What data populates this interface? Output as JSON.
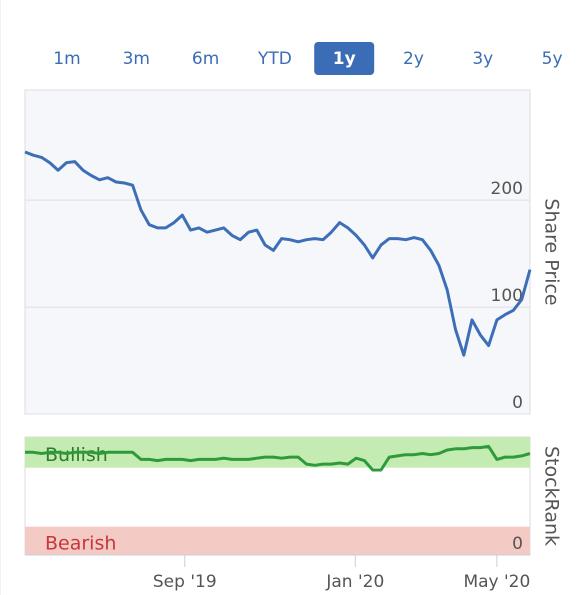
{
  "tabs": {
    "items": [
      "1m",
      "3m",
      "6m",
      "YTD",
      "1y",
      "2y",
      "3y",
      "5y"
    ],
    "active": 4
  },
  "chart_data": [
    {
      "type": "line",
      "axis_label": "Share Price",
      "color": "#3d6fb8",
      "x": [
        0,
        1,
        2,
        3,
        4,
        5,
        6,
        7,
        8,
        9,
        10,
        11,
        12,
        13,
        14,
        15,
        16,
        17,
        18,
        19,
        20,
        21,
        22,
        23,
        24,
        25,
        26,
        27,
        28,
        29,
        30,
        31,
        32,
        33,
        34,
        35,
        36,
        37,
        38,
        39,
        40,
        41,
        42,
        43,
        44,
        45,
        46,
        47,
        48,
        49,
        50,
        51,
        52,
        53,
        54,
        55,
        56,
        57,
        58,
        59,
        60,
        61
      ],
      "values": [
        245,
        242,
        240,
        235,
        228,
        235,
        236,
        228,
        223,
        219,
        221,
        217,
        216,
        214,
        191,
        177,
        174,
        174,
        179,
        186,
        172,
        174,
        170,
        172,
        174,
        167,
        163,
        170,
        172,
        158,
        153,
        164,
        163,
        161,
        163,
        164,
        163,
        170,
        179,
        174,
        167,
        158,
        146,
        158,
        164,
        164,
        163,
        165,
        163,
        153,
        139,
        116,
        79,
        55,
        88,
        74,
        64,
        88,
        93,
        97,
        107,
        135
      ],
      "xlim": [
        0,
        61
      ],
      "ylim": [
        0,
        303
      ],
      "yticks": [
        0,
        100,
        200
      ],
      "grid": true
    },
    {
      "type": "line",
      "axis_label": "StockRank",
      "color": "#2e9a3a",
      "x": [
        0,
        1,
        2,
        3,
        4,
        5,
        6,
        7,
        8,
        9,
        10,
        11,
        12,
        13,
        14,
        15,
        16,
        17,
        18,
        19,
        20,
        21,
        22,
        23,
        24,
        25,
        26,
        27,
        28,
        29,
        30,
        31,
        32,
        33,
        34,
        35,
        36,
        37,
        38,
        39,
        40,
        41,
        42,
        43,
        44,
        45,
        46,
        47,
        48,
        49,
        50,
        51,
        52,
        53,
        54,
        55,
        56,
        57,
        58,
        59,
        60,
        61
      ],
      "values": [
        87,
        87,
        86,
        87,
        87,
        86,
        87,
        87,
        87,
        86,
        87,
        87,
        87,
        87,
        81,
        81,
        80,
        81,
        81,
        81,
        80,
        81,
        81,
        81,
        82,
        81,
        81,
        81,
        82,
        83,
        83,
        82,
        83,
        83,
        77,
        76,
        77,
        77,
        78,
        77,
        82,
        80,
        72,
        72,
        83,
        84,
        85,
        85,
        86,
        85,
        86,
        89,
        90,
        90,
        91,
        91,
        92,
        81,
        83,
        83,
        84,
        86
      ],
      "bands": [
        {
          "label": "Bullish",
          "from": 74,
          "to": 100,
          "color": "#c4ecb2",
          "text_color": "#2c7d2c"
        },
        {
          "label": "Bearish",
          "from": 0,
          "to": 24,
          "color": "#f3cac4",
          "text_color": "#c7373c"
        }
      ],
      "xlim": [
        0,
        61
      ],
      "ylim": [
        0,
        100
      ],
      "yticks": [
        0
      ],
      "xticks": [
        {
          "value": 19.3,
          "label": "Sep '19"
        },
        {
          "value": 39.9,
          "label": "Jan '20"
        },
        {
          "value": 57,
          "label": "May '20"
        }
      ]
    }
  ]
}
